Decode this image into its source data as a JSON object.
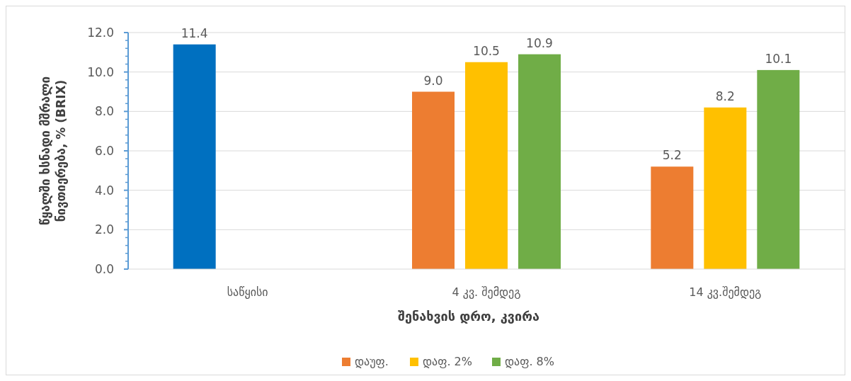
{
  "chart_data": {
    "type": "bar",
    "ylabel": "წყალში ხსნადი მშრალი\nნივთიერება, % (BRIX)",
    "xlabel": "შენახვის დრო, კვირა",
    "categories": [
      "საწყისი",
      "4 კვ. შემდეგ",
      "14 კვ.შემდეგ"
    ],
    "series": [
      {
        "name": "დაუფ.",
        "color": "#ed7d31",
        "colors": [
          "#0070c0",
          "#ed7d31",
          "#ed7d31"
        ],
        "values": [
          11.4,
          9.0,
          5.2
        ],
        "value_labels": [
          "11.4",
          "9.0",
          "5.2"
        ]
      },
      {
        "name": "დაფ. 2%",
        "color": "#ffc000",
        "values": [
          null,
          10.5,
          8.2
        ],
        "value_labels": [
          null,
          "10.5",
          "8.2"
        ]
      },
      {
        "name": "დაფ. 8%",
        "color": "#70ad47",
        "values": [
          null,
          10.9,
          10.1
        ],
        "value_labels": [
          null,
          "10.9",
          "10.1"
        ]
      }
    ],
    "ylim": [
      0,
      12
    ],
    "yticks": [
      {
        "value": 0,
        "label": "0.0"
      },
      {
        "value": 0.4,
        "label": null
      },
      {
        "value": 0.8,
        "label": null
      },
      {
        "value": 1.2,
        "label": null
      },
      {
        "value": 1.6,
        "label": null
      },
      {
        "value": 2,
        "label": "2.0"
      },
      {
        "value": 2.4,
        "label": null
      },
      {
        "value": 2.8,
        "label": null
      },
      {
        "value": 3.2,
        "label": null
      },
      {
        "value": 3.6,
        "label": null
      },
      {
        "value": 4,
        "label": "4.0"
      },
      {
        "value": 4.4,
        "label": null
      },
      {
        "value": 4.8,
        "label": null
      },
      {
        "value": 5.2,
        "label": null
      },
      {
        "value": 5.6,
        "label": null
      },
      {
        "value": 6,
        "label": "6.0"
      },
      {
        "value": 6.4,
        "label": null
      },
      {
        "value": 6.8,
        "label": null
      },
      {
        "value": 7.2,
        "label": null
      },
      {
        "value": 7.6,
        "label": null
      },
      {
        "value": 8,
        "label": "8.0"
      },
      {
        "value": 8.4,
        "label": null
      },
      {
        "value": 8.8,
        "label": null
      },
      {
        "value": 9.2,
        "label": null
      },
      {
        "value": 9.6,
        "label": null
      },
      {
        "value": 10,
        "label": "10.0"
      },
      {
        "value": 10.4,
        "label": null
      },
      {
        "value": 10.8,
        "label": null
      },
      {
        "value": 11.2,
        "label": null
      },
      {
        "value": 11.6,
        "label": null
      },
      {
        "value": 12,
        "label": "12.0"
      }
    ],
    "grid": "y",
    "legend": "bottom"
  }
}
